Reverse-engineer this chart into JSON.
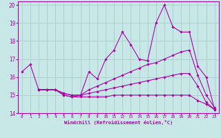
{
  "background_color": "#c8e8e8",
  "line_color": "#aa00aa",
  "grid_color": "#aacccc",
  "xlabel": "Windchill (Refroidissement éolien,°C)",
  "xlabel_color": "#aa00aa",
  "ylabel_color": "#aa00aa",
  "xlim": [
    -0.5,
    23.5
  ],
  "ylim": [
    14,
    20.2
  ],
  "xticks": [
    0,
    1,
    2,
    3,
    4,
    5,
    6,
    7,
    8,
    9,
    10,
    11,
    12,
    13,
    14,
    15,
    16,
    17,
    18,
    19,
    20,
    21,
    22,
    23
  ],
  "yticks": [
    14,
    15,
    16,
    17,
    18,
    19,
    20
  ],
  "lines": [
    {
      "x": [
        0,
        1,
        2,
        3,
        4,
        5,
        6,
        7,
        8,
        9,
        10,
        11,
        12,
        13,
        14,
        15,
        16,
        17,
        18,
        19,
        20,
        21,
        22,
        23
      ],
      "y": [
        16.3,
        16.7,
        15.3,
        15.3,
        15.3,
        15.1,
        15.0,
        15.0,
        16.3,
        15.9,
        17.0,
        17.5,
        18.5,
        17.8,
        17.0,
        16.9,
        19.0,
        20.0,
        18.8,
        18.5,
        18.5,
        16.6,
        16.0,
        14.2
      ]
    },
    {
      "x": [
        2,
        3,
        4,
        5,
        6,
        7,
        8,
        9,
        10,
        11,
        12,
        13,
        14,
        15,
        16,
        17,
        18,
        19,
        20,
        21,
        22,
        23
      ],
      "y": [
        15.3,
        15.3,
        15.3,
        15.1,
        15.0,
        15.0,
        15.3,
        15.5,
        15.7,
        15.9,
        16.1,
        16.3,
        16.5,
        16.7,
        16.8,
        17.0,
        17.2,
        17.4,
        17.5,
        16.1,
        15.0,
        14.3
      ]
    },
    {
      "x": [
        2,
        3,
        4,
        5,
        6,
        7,
        8,
        9,
        10,
        11,
        12,
        13,
        14,
        15,
        16,
        17,
        18,
        19,
        20,
        21,
        22,
        23
      ],
      "y": [
        15.3,
        15.3,
        15.3,
        15.0,
        14.9,
        15.0,
        15.1,
        15.2,
        15.3,
        15.4,
        15.5,
        15.6,
        15.7,
        15.8,
        15.9,
        16.0,
        16.1,
        16.2,
        16.2,
        15.5,
        14.6,
        14.2
      ]
    },
    {
      "x": [
        2,
        3,
        4,
        5,
        6,
        7,
        8,
        9,
        10,
        11,
        12,
        13,
        14,
        15,
        16,
        17,
        18,
        19,
        20,
        21,
        22,
        23
      ],
      "y": [
        15.3,
        15.3,
        15.3,
        15.0,
        14.9,
        14.9,
        14.9,
        14.9,
        14.9,
        15.0,
        15.0,
        15.0,
        15.0,
        15.0,
        15.0,
        15.0,
        15.0,
        15.0,
        15.0,
        14.7,
        14.5,
        14.2
      ]
    }
  ]
}
